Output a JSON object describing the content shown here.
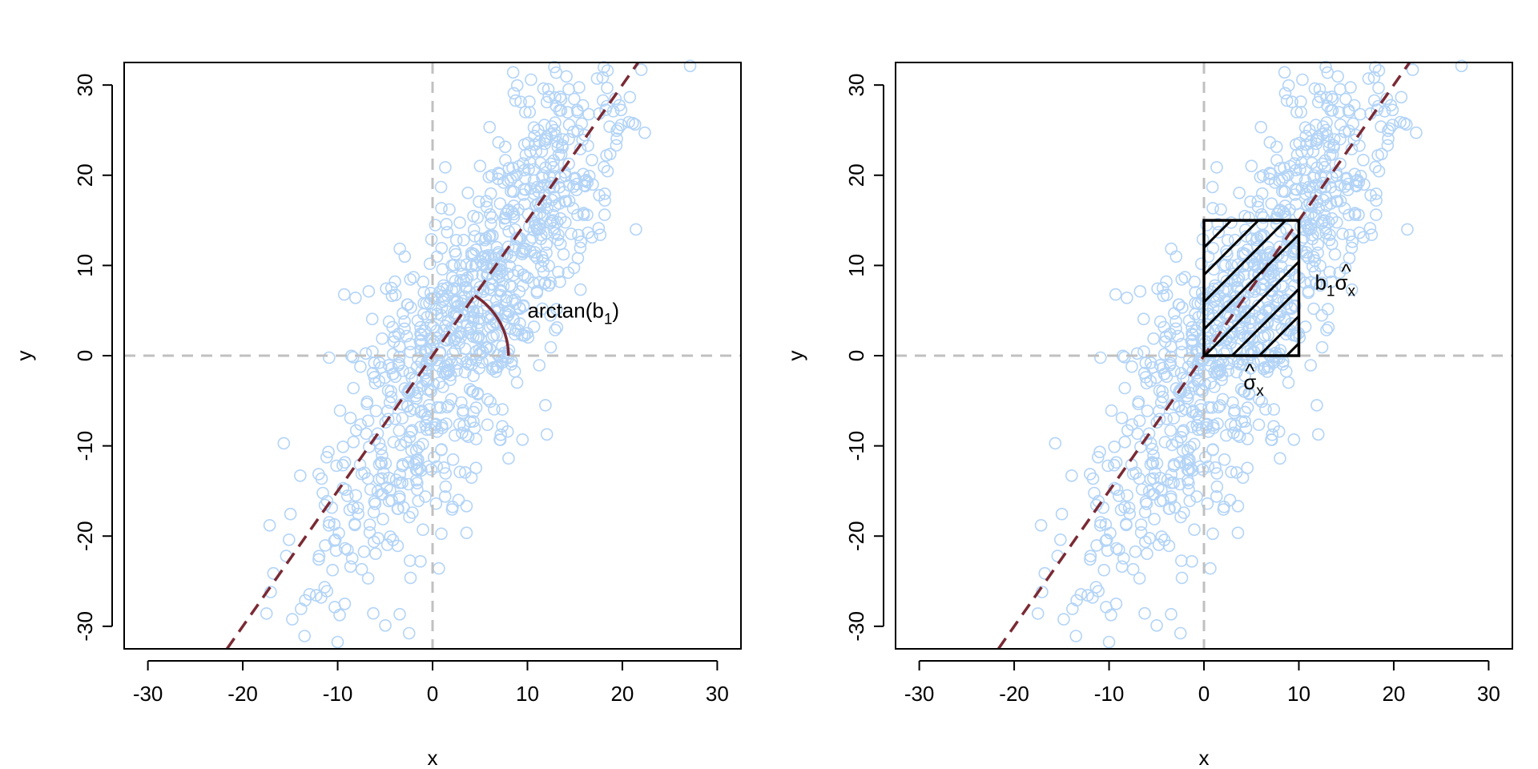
{
  "chart_data": [
    {
      "type": "scatter",
      "xlabel": "x",
      "ylabel": "y",
      "xlim": [
        -32.5,
        32.5
      ],
      "ylim": [
        -32.5,
        32.5
      ],
      "xticks": [
        -30,
        -20,
        -10,
        0,
        10,
        20,
        30
      ],
      "yticks": [
        -30,
        -20,
        -10,
        0,
        10,
        20,
        30
      ],
      "tick_labels_x": [
        "-30",
        "-20",
        "-10",
        "0",
        "10",
        "20",
        "30"
      ],
      "tick_labels_y": [
        "-30",
        "-20",
        "-10",
        "0",
        "10",
        "20",
        "30"
      ],
      "points_approx": {
        "count": 1000,
        "center": [
          4,
          4
        ],
        "sd_x": 8,
        "slope": 1.5,
        "residual_sd": 8
      },
      "fit_line": {
        "intercept": 0,
        "slope": 1.5
      },
      "reference_lines": {
        "x": 0,
        "y": 0
      },
      "angle_arc": {
        "radius": 8
      },
      "annotation": {
        "prefix": "arctan(b",
        "sub": "1",
        "suffix": ")",
        "x": 10,
        "y": 5
      }
    },
    {
      "type": "scatter",
      "xlabel": "x",
      "ylabel": "y",
      "xlim": [
        -32.5,
        32.5
      ],
      "ylim": [
        -32.5,
        32.5
      ],
      "xticks": [
        -30,
        -20,
        -10,
        0,
        10,
        20,
        30
      ],
      "yticks": [
        -30,
        -20,
        -10,
        0,
        10,
        20,
        30
      ],
      "tick_labels_x": [
        "-30",
        "-20",
        "-10",
        "0",
        "10",
        "20",
        "30"
      ],
      "tick_labels_y": [
        "-30",
        "-20",
        "-10",
        "0",
        "10",
        "20",
        "30"
      ],
      "points_approx": {
        "count": 1000,
        "center": [
          4,
          4
        ],
        "sd_x": 8,
        "slope": 1.5,
        "residual_sd": 8
      },
      "fit_line": {
        "intercept": 0,
        "slope": 1.5
      },
      "reference_lines": {
        "x": 0,
        "y": 0
      },
      "rectangle": {
        "x0": 0,
        "x1": 10,
        "y0": 0,
        "y1": 15,
        "hatched": true
      },
      "label_width": {
        "text": "σ",
        "sub": "x",
        "hat": "^"
      },
      "label_height": {
        "prefix": "b",
        "sub1": "1",
        "text": "σ",
        "sub2": "x",
        "hat": "^"
      }
    }
  ],
  "colors": {
    "points": "#b3d4f7",
    "fit_line": "#7a2a34",
    "reference": "#c0c0c0",
    "axes": "#000000"
  }
}
